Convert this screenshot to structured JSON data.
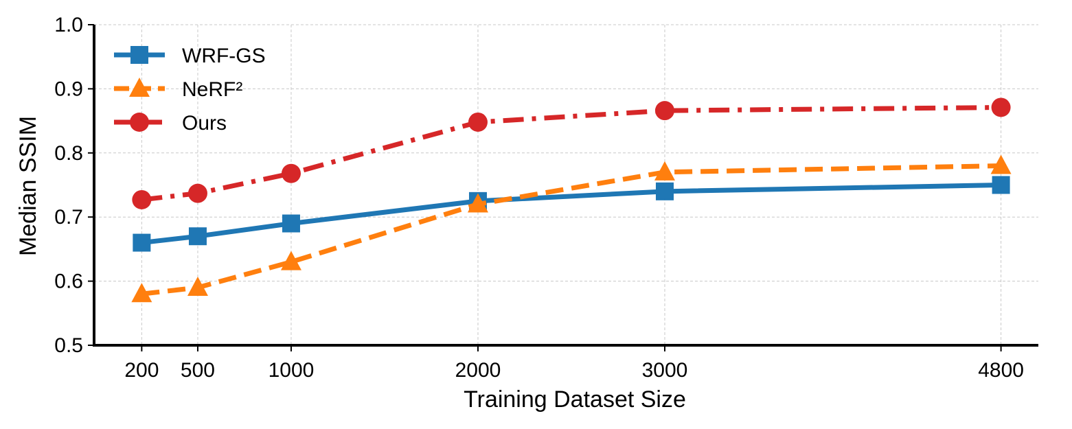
{
  "chart_data": {
    "type": "line",
    "xlabel": "Training Dataset Size",
    "ylabel": "Median SSIM",
    "x": [
      200,
      500,
      1000,
      2000,
      3000,
      4800
    ],
    "x_ticks": [
      "200",
      "500",
      "1000",
      "2000",
      "3000",
      "4800"
    ],
    "y_ticks": [
      "0.5",
      "0.6",
      "0.7",
      "0.8",
      "0.9",
      "1.0"
    ],
    "xlim": [
      -55,
      5000
    ],
    "ylim": [
      0.5,
      1.0
    ],
    "grid": true,
    "legend_position": "top-left",
    "series": [
      {
        "name": "WRF-GS",
        "values": [
          0.66,
          0.67,
          0.69,
          0.725,
          0.74,
          0.75
        ],
        "color": "#1f77b4",
        "marker": "square",
        "linestyle": "solid"
      },
      {
        "name": "NeRF²",
        "values": [
          0.58,
          0.59,
          0.63,
          0.72,
          0.77,
          0.78
        ],
        "color": "#ff7f0e",
        "marker": "triangle",
        "linestyle": "dashed"
      },
      {
        "name": "Ours",
        "values": [
          0.727,
          0.737,
          0.768,
          0.848,
          0.866,
          0.871
        ],
        "color": "#d62728",
        "marker": "circle",
        "linestyle": "dashdot"
      }
    ]
  }
}
